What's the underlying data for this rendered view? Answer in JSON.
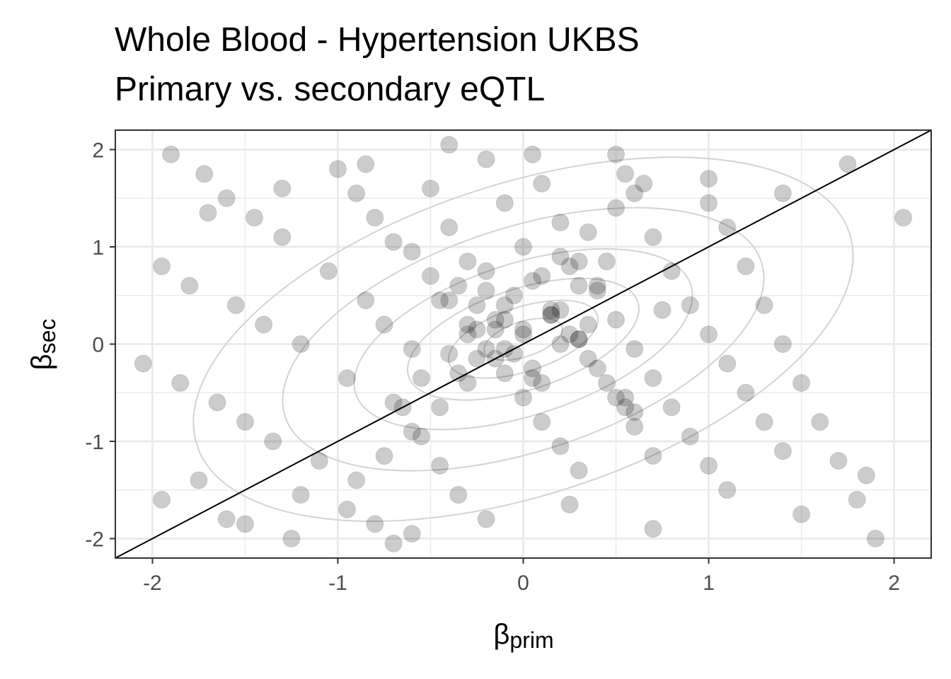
{
  "chart_data": {
    "type": "scatter",
    "title": "Whole Blood - Hypertension UKBS",
    "subtitle": "Primary vs. secondary eQTL",
    "xlabel": {
      "symbol": "β",
      "subscript": "prim"
    },
    "ylabel": {
      "symbol": "β",
      "subscript": "sec"
    },
    "xlim": [
      -2.2,
      2.2
    ],
    "ylim": [
      -2.2,
      2.2
    ],
    "x_ticks": [
      -2,
      -1,
      0,
      1,
      2
    ],
    "y_ticks": [
      -2,
      -1,
      0,
      1,
      2
    ],
    "x_tick_labels": [
      "-2",
      "-1",
      "0",
      "1",
      "2"
    ],
    "y_tick_labels": [
      "-2",
      "-1",
      "0",
      "1",
      "2"
    ],
    "grid": true,
    "reference_line": {
      "type": "identity",
      "slope": 1,
      "intercept": 0
    },
    "density_contours": true,
    "point_color": "#000000",
    "point_alpha": 0.2,
    "x": [
      -1.9,
      -1.72,
      -1.6,
      -1.45,
      -1.3,
      -1.95,
      -1.8,
      -1.55,
      -1.4,
      -1.2,
      -2.05,
      -1.85,
      -1.65,
      -1.5,
      -1.35,
      -1.1,
      -1.75,
      -1.95,
      -1.6,
      -1.25,
      -1.0,
      -0.9,
      -0.8,
      -0.7,
      -1.05,
      -0.85,
      -0.75,
      -0.6,
      -0.95,
      -0.65,
      -0.55,
      -0.45,
      -0.35,
      -0.8,
      -0.7,
      -0.5,
      -0.4,
      -0.3,
      -0.2,
      -0.1,
      -0.6,
      -0.5,
      -0.4,
      -0.3,
      -0.2,
      -0.1,
      0.0,
      0.1,
      0.2,
      0.3,
      -0.35,
      -0.25,
      -0.15,
      -0.05,
      0.05,
      0.15,
      0.25,
      0.35,
      0.45,
      0.55,
      -0.2,
      -0.1,
      0.0,
      0.1,
      0.2,
      0.3,
      0.4,
      0.5,
      0.6,
      0.7,
      0.1,
      0.2,
      0.3,
      0.4,
      0.5,
      0.6,
      0.7,
      0.8,
      0.9,
      1.0,
      0.5,
      0.6,
      0.7,
      0.8,
      0.9,
      1.0,
      1.1,
      1.2,
      1.3,
      1.4,
      1.0,
      1.1,
      1.2,
      1.3,
      1.4,
      1.5,
      1.6,
      1.7,
      1.8,
      1.9,
      -0.7,
      -0.55,
      -0.4,
      -0.25,
      -0.1,
      0.05,
      0.2,
      0.35,
      0.5,
      0.65,
      -0.9,
      -0.75,
      -0.6,
      -0.45,
      -0.3,
      -0.15,
      0.0,
      0.15,
      0.3,
      0.45,
      -1.5,
      -1.2,
      -0.95,
      -0.6,
      -0.2,
      0.25,
      0.7,
      1.1,
      1.5,
      1.85,
      -1.7,
      -1.3,
      -0.85,
      -0.4,
      0.05,
      0.55,
      1.0,
      1.4,
      1.75,
      2.05,
      -0.3,
      -0.15,
      0.0,
      0.15,
      0.3,
      -0.25,
      -0.1,
      0.05,
      0.2,
      0.35,
      -0.45,
      -0.35,
      -0.05,
      0.1,
      0.4,
      0.55,
      -0.2,
      0.25,
      0.6,
      0.75
    ],
    "y": [
      1.95,
      1.75,
      1.5,
      1.3,
      1.1,
      0.8,
      0.6,
      0.4,
      0.2,
      0.0,
      -0.2,
      -0.4,
      -0.6,
      -0.8,
      -1.0,
      -1.2,
      -1.4,
      -1.6,
      -1.8,
      -2.0,
      1.8,
      1.55,
      1.3,
      1.05,
      0.75,
      0.45,
      0.2,
      -0.05,
      -0.35,
      -0.65,
      -0.95,
      -1.25,
      -1.55,
      -1.85,
      -2.05,
      1.6,
      1.2,
      0.85,
      0.55,
      0.25,
      0.95,
      0.7,
      0.45,
      0.2,
      -0.05,
      -0.3,
      -0.55,
      -0.8,
      -1.05,
      -1.3,
      0.6,
      0.4,
      0.15,
      -0.1,
      -0.35,
      0.3,
      0.1,
      -0.15,
      -0.4,
      -0.65,
      1.9,
      1.45,
      1.0,
      0.7,
      0.35,
      0.05,
      -0.25,
      -0.55,
      -0.85,
      -1.15,
      1.65,
      1.25,
      0.85,
      0.55,
      0.25,
      -0.05,
      -0.35,
      -0.65,
      -0.95,
      -1.25,
      1.95,
      1.55,
      1.1,
      0.75,
      0.4,
      0.1,
      -0.2,
      -0.5,
      -0.8,
      -1.1,
      1.7,
      1.2,
      0.8,
      0.4,
      0.0,
      -0.4,
      -0.8,
      -1.2,
      -1.6,
      -2.0,
      -0.6,
      -0.35,
      -0.1,
      0.15,
      0.4,
      0.65,
      0.9,
      1.15,
      1.4,
      1.65,
      -1.4,
      -1.15,
      -0.9,
      -0.65,
      -0.4,
      -0.15,
      0.1,
      0.35,
      0.6,
      0.85,
      -1.85,
      -1.55,
      -1.7,
      -1.95,
      -1.8,
      -1.65,
      -1.9,
      -1.5,
      -1.75,
      -1.35,
      1.35,
      1.6,
      1.85,
      2.05,
      1.95,
      1.75,
      1.45,
      1.55,
      1.85,
      1.3,
      0.1,
      0.25,
      0.15,
      0.3,
      0.05,
      -0.15,
      -0.05,
      -0.25,
      0.0,
      0.2,
      0.45,
      -0.3,
      0.5,
      -0.4,
      0.6,
      -0.55,
      0.75,
      0.8,
      -0.7,
      0.35
    ]
  }
}
